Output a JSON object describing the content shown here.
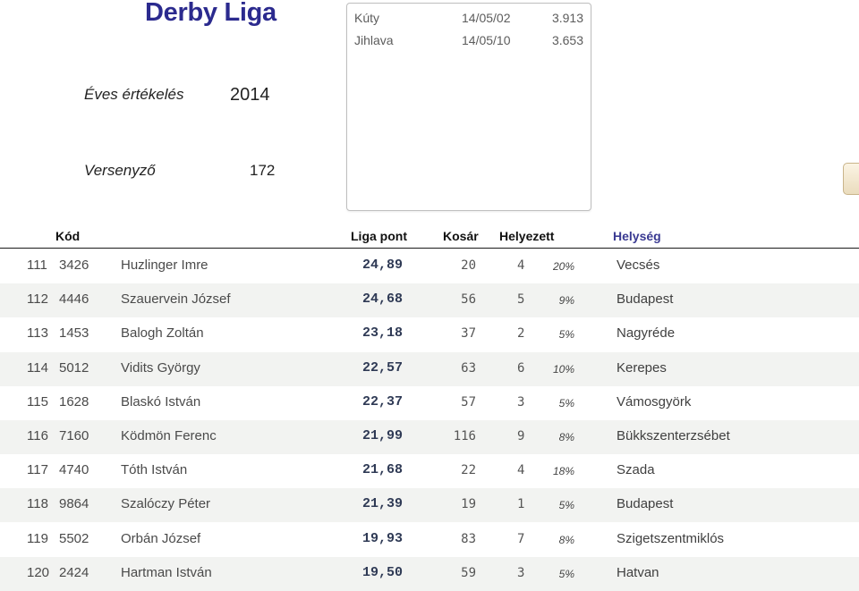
{
  "title": "Derby Liga",
  "popup": {
    "rows": [
      {
        "name": "Kúty",
        "date": "14/05/02",
        "value": "3.913"
      },
      {
        "name": "Jihlava",
        "date": "14/05/10",
        "value": "3.653"
      }
    ]
  },
  "season": {
    "label": "Éves értékelés",
    "value": "2014"
  },
  "competitors": {
    "label": "Versenyző",
    "value": "172"
  },
  "table": {
    "headers": {
      "code": "Kód",
      "points": "Liga pont",
      "basket": "Kosár",
      "placed": "Helyezett",
      "town": "Helység"
    },
    "rows": [
      {
        "num": "111",
        "code": "3426",
        "name": "Huzlinger Imre",
        "points": "24,89",
        "basket": "20",
        "placed": "4",
        "pct": "20%",
        "town": "Vecsés"
      },
      {
        "num": "112",
        "code": "4446",
        "name": "Szauervein József",
        "points": "24,68",
        "basket": "56",
        "placed": "5",
        "pct": "9%",
        "town": "Budapest"
      },
      {
        "num": "113",
        "code": "1453",
        "name": "Balogh Zoltán",
        "points": "23,18",
        "basket": "37",
        "placed": "2",
        "pct": "5%",
        "town": "Nagyréde"
      },
      {
        "num": "114",
        "code": "5012",
        "name": "Vidits György",
        "points": "22,57",
        "basket": "63",
        "placed": "6",
        "pct": "10%",
        "town": "Kerepes"
      },
      {
        "num": "115",
        "code": "1628",
        "name": "Blaskó István",
        "points": "22,37",
        "basket": "57",
        "placed": "3",
        "pct": "5%",
        "town": "Vámosgyörk"
      },
      {
        "num": "116",
        "code": "7160",
        "name": "Ködmön Ferenc",
        "points": "21,99",
        "basket": "116",
        "placed": "9",
        "pct": "8%",
        "town": "Bükkszenterzsébet"
      },
      {
        "num": "117",
        "code": "4740",
        "name": "Tóth István",
        "points": "21,68",
        "basket": "22",
        "placed": "4",
        "pct": "18%",
        "town": "Szada"
      },
      {
        "num": "118",
        "code": "9864",
        "name": "Szalóczy Péter",
        "points": "21,39",
        "basket": "19",
        "placed": "1",
        "pct": "5%",
        "town": "Budapest"
      },
      {
        "num": "119",
        "code": "5502",
        "name": "Orbán József",
        "points": "19,93",
        "basket": "83",
        "placed": "7",
        "pct": "8%",
        "town": "Szigetszentmiklós"
      },
      {
        "num": "120",
        "code": "2424",
        "name": "Hartman István",
        "points": "19,50",
        "basket": "59",
        "placed": "3",
        "pct": "5%",
        "town": "Hatvan"
      }
    ]
  }
}
